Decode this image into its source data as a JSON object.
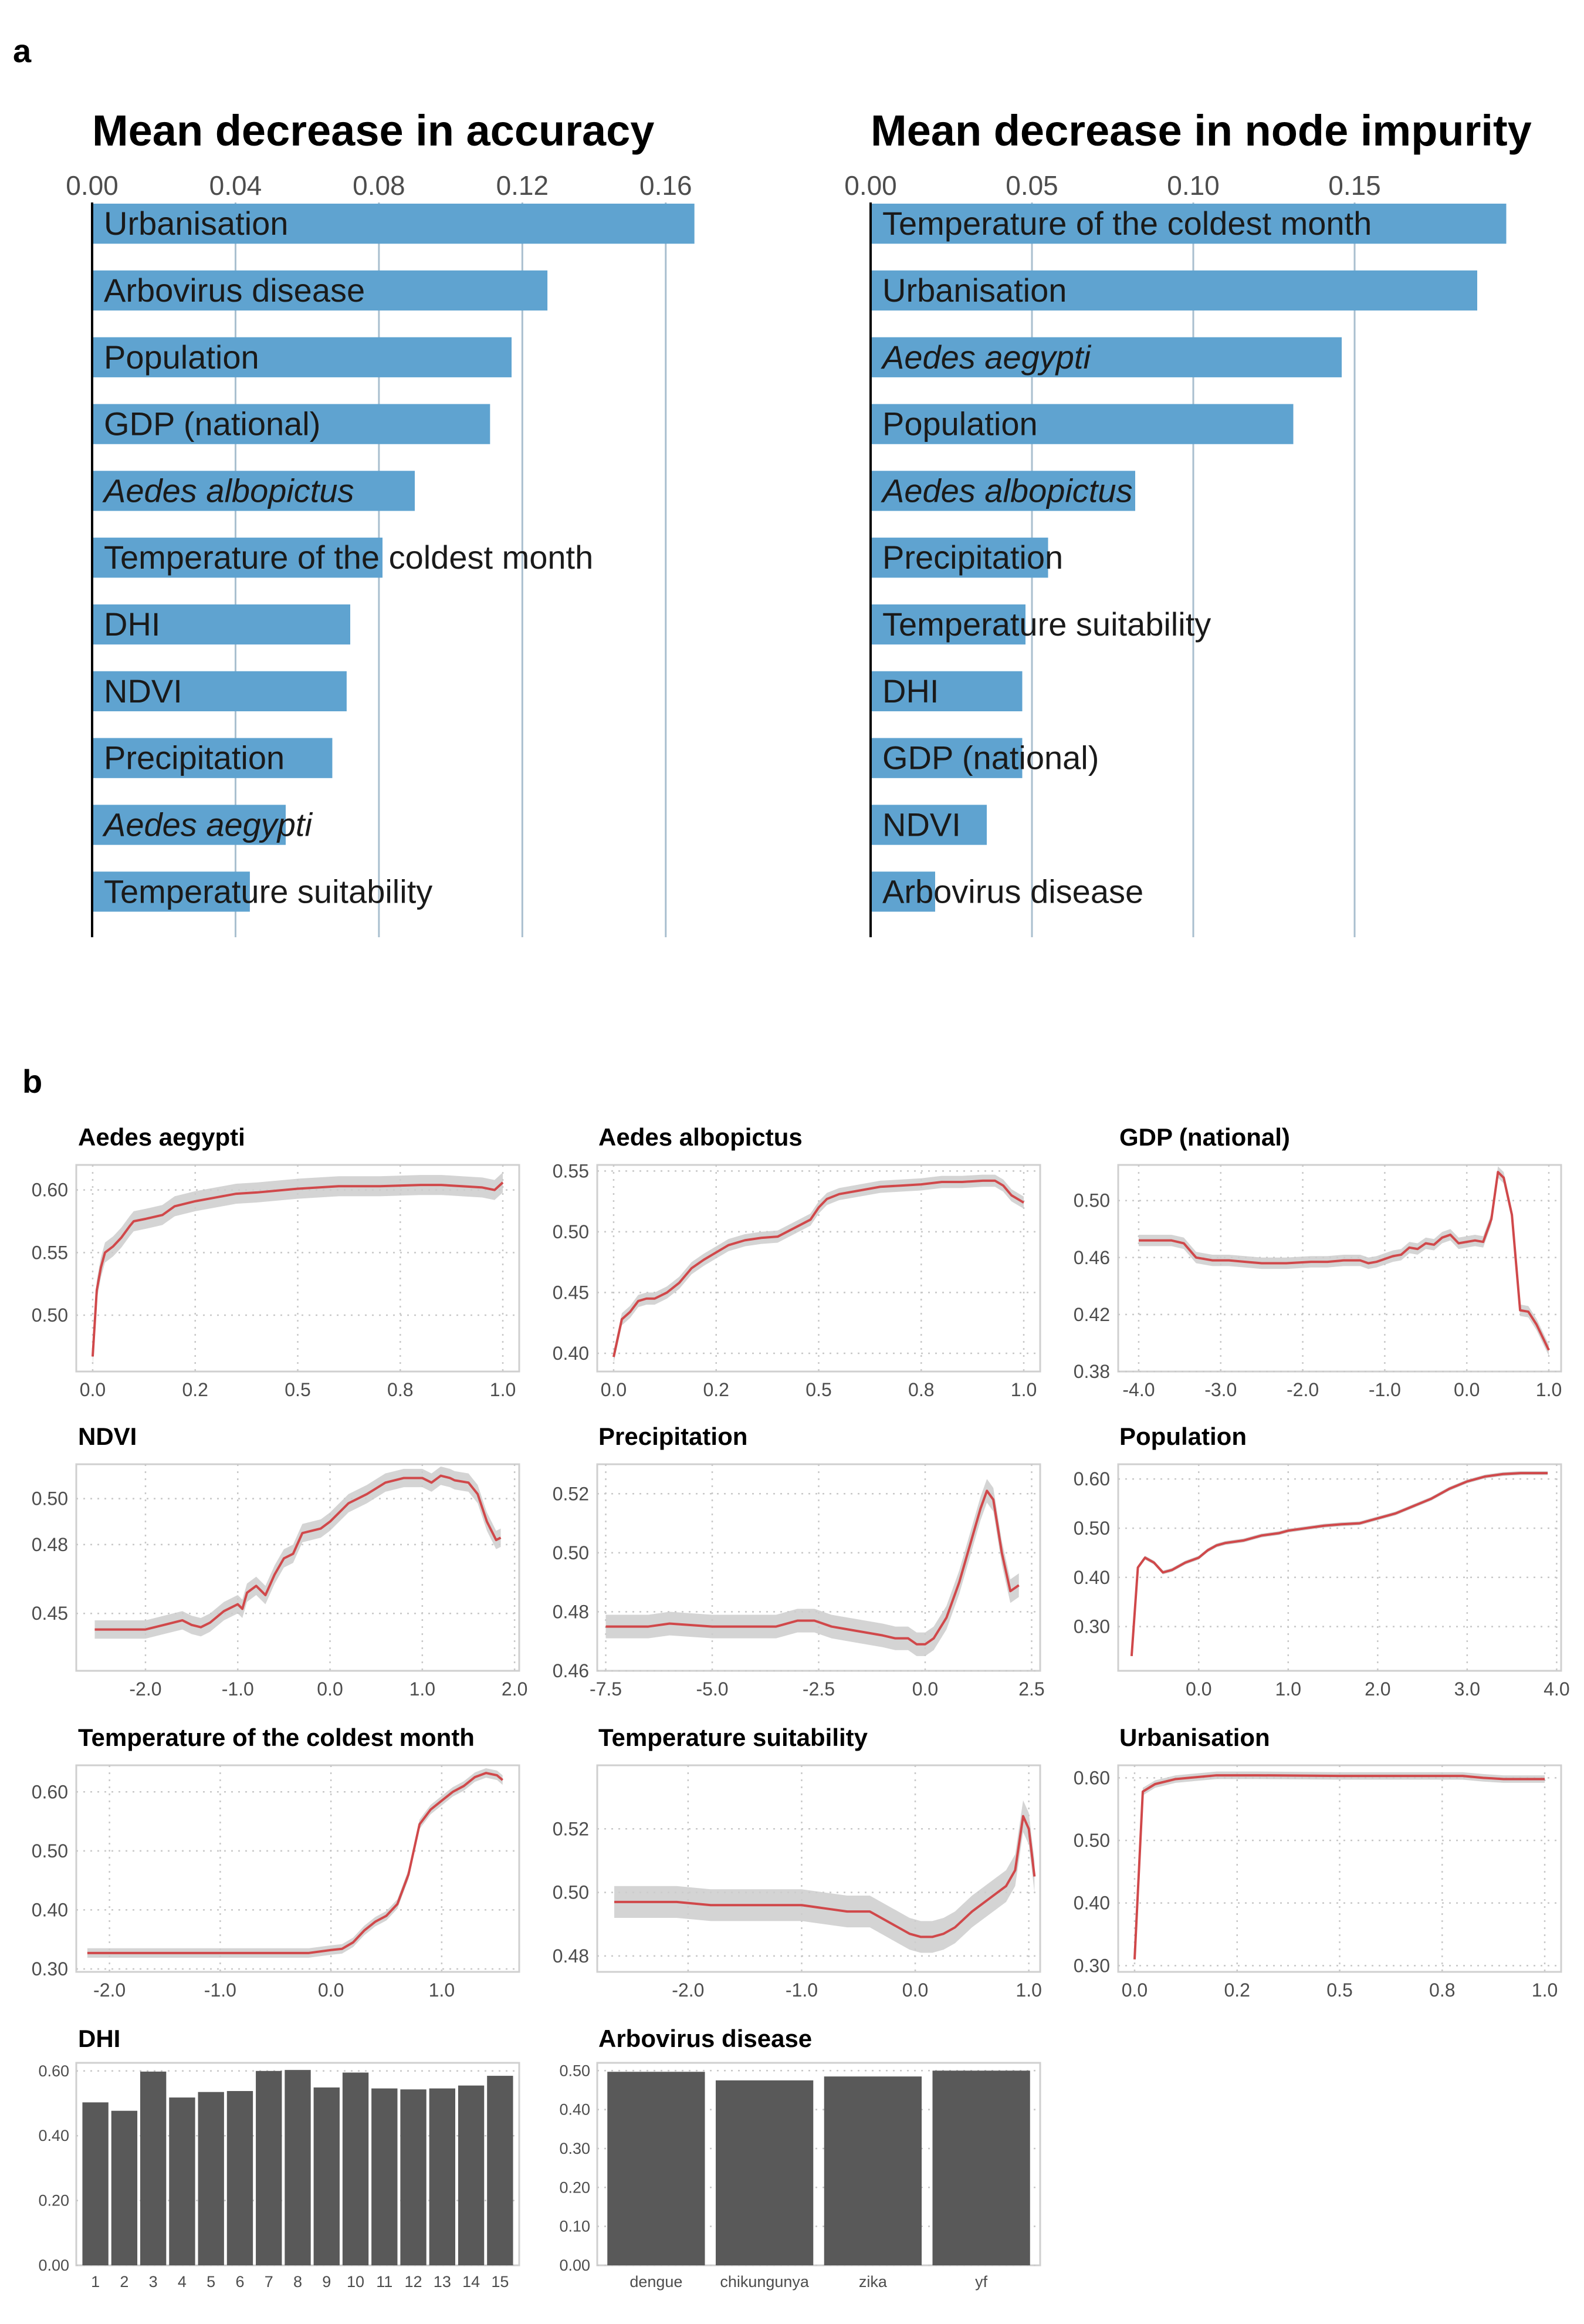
{
  "panels": {
    "a": "a",
    "b": "b"
  },
  "chart_data": [
    {
      "type": "bar",
      "title": "Mean decrease in accuracy",
      "orientation": "horizontal",
      "xlim": [
        0,
        0.18
      ],
      "xticks": [
        0,
        0.04,
        0.08,
        0.12,
        0.16
      ],
      "xtick_labels": [
        "0.00",
        "0.04",
        "0.08",
        "0.12",
        "0.16"
      ],
      "categories": [
        "Urbanisation",
        "Arbovirus disease",
        "Population",
        "GDP (national)",
        "Aedes albopictus",
        "Temperature of the coldest month",
        "DHI",
        "NDVI",
        "Precipitation",
        "Aedes aegypti",
        "Temperature suitability"
      ],
      "italic": [
        false,
        false,
        false,
        false,
        true,
        false,
        false,
        false,
        false,
        true,
        false
      ],
      "values": [
        0.168,
        0.127,
        0.117,
        0.111,
        0.09,
        0.081,
        0.072,
        0.071,
        0.067,
        0.054,
        0.044
      ],
      "bar_color": "#5fa3d0"
    },
    {
      "type": "bar",
      "title": "Mean decrease in node impurity",
      "orientation": "horizontal",
      "xlim": [
        0,
        0.2
      ],
      "xticks": [
        0,
        0.05,
        0.1,
        0.15
      ],
      "xtick_labels": [
        "0.00",
        "0.05",
        "0.10",
        "0.15"
      ],
      "categories": [
        "Temperature of the coldest month",
        "Urbanisation",
        "Aedes aegypti",
        "Population",
        "Aedes albopictus",
        "Precipitation",
        "Temperature suitability",
        "DHI",
        "GDP (national)",
        "NDVI",
        "Arbovirus disease"
      ],
      "italic": [
        false,
        false,
        true,
        false,
        true,
        false,
        false,
        false,
        false,
        false,
        false
      ],
      "values": [
        0.197,
        0.188,
        0.146,
        0.131,
        0.082,
        0.055,
        0.048,
        0.047,
        0.047,
        0.036,
        0.02
      ],
      "bar_color": "#5fa3d0"
    },
    {
      "type": "line",
      "title": "Aedes aegypti",
      "xlim": [
        -0.04,
        1.04
      ],
      "ylim": [
        0.455,
        0.62
      ],
      "xticks": [
        0,
        0.25,
        0.5,
        0.75,
        1.0
      ],
      "xtick_labels": [
        "0.0",
        "0.2",
        "0.5",
        "0.8",
        "1.0"
      ],
      "yticks": [
        0.5,
        0.55,
        0.6
      ],
      "ytick_labels": [
        "0.50",
        "0.55",
        "0.60"
      ],
      "x": [
        0,
        0.01,
        0.02,
        0.03,
        0.05,
        0.07,
        0.09,
        0.1,
        0.13,
        0.17,
        0.2,
        0.25,
        0.3,
        0.35,
        0.4,
        0.5,
        0.6,
        0.7,
        0.8,
        0.85,
        0.9,
        0.95,
        0.98,
        1.0
      ],
      "y": [
        0.467,
        0.52,
        0.538,
        0.55,
        0.555,
        0.562,
        0.571,
        0.575,
        0.577,
        0.58,
        0.587,
        0.591,
        0.594,
        0.597,
        0.598,
        0.601,
        0.603,
        0.603,
        0.604,
        0.604,
        0.603,
        0.602,
        0.6,
        0.606
      ],
      "band": 0.008,
      "line_color": "#d0484a",
      "band_color": "#cccccc"
    },
    {
      "type": "line",
      "title": "Aedes albopictus",
      "xlim": [
        -0.04,
        1.04
      ],
      "ylim": [
        0.385,
        0.555
      ],
      "xticks": [
        0,
        0.25,
        0.5,
        0.75,
        1.0
      ],
      "xtick_labels": [
        "0.0",
        "0.2",
        "0.5",
        "0.8",
        "1.0"
      ],
      "yticks": [
        0.4,
        0.45,
        0.5,
        0.55
      ],
      "ytick_labels": [
        "0.40",
        "0.45",
        "0.50",
        "0.55"
      ],
      "x": [
        0,
        0.02,
        0.04,
        0.06,
        0.08,
        0.1,
        0.13,
        0.16,
        0.19,
        0.22,
        0.25,
        0.28,
        0.32,
        0.36,
        0.4,
        0.44,
        0.48,
        0.5,
        0.52,
        0.55,
        0.6,
        0.65,
        0.7,
        0.75,
        0.8,
        0.85,
        0.9,
        0.93,
        0.95,
        0.97,
        1.0
      ],
      "y": [
        0.397,
        0.428,
        0.434,
        0.443,
        0.445,
        0.445,
        0.45,
        0.458,
        0.47,
        0.477,
        0.483,
        0.489,
        0.493,
        0.495,
        0.496,
        0.503,
        0.51,
        0.52,
        0.527,
        0.531,
        0.534,
        0.537,
        0.538,
        0.539,
        0.541,
        0.541,
        0.542,
        0.542,
        0.538,
        0.53,
        0.524
      ],
      "band": 0.005,
      "line_color": "#d0484a",
      "band_color": "#cccccc"
    },
    {
      "type": "line",
      "title": "GDP (national)",
      "xlim": [
        -4.25,
        1.15
      ],
      "ylim": [
        0.38,
        0.525
      ],
      "xticks": [
        -4,
        -3,
        -2,
        -1,
        0,
        1
      ],
      "xtick_labels": [
        "-4.0",
        "-3.0",
        "-2.0",
        "-1.0",
        "0.0",
        "1.0"
      ],
      "yticks": [
        0.38,
        0.42,
        0.46,
        0.5
      ],
      "ytick_labels": [
        "0.38",
        "0.42",
        "0.46",
        "0.50"
      ],
      "x": [
        -4.0,
        -3.8,
        -3.6,
        -3.45,
        -3.3,
        -3.1,
        -2.9,
        -2.7,
        -2.5,
        -2.2,
        -1.9,
        -1.7,
        -1.5,
        -1.3,
        -1.2,
        -1.1,
        -0.9,
        -0.8,
        -0.7,
        -0.6,
        -0.5,
        -0.4,
        -0.3,
        -0.2,
        -0.1,
        0.1,
        0.2,
        0.3,
        0.38,
        0.45,
        0.55,
        0.65,
        0.75,
        0.85,
        1.0
      ],
      "y": [
        0.472,
        0.472,
        0.472,
        0.47,
        0.46,
        0.458,
        0.458,
        0.457,
        0.456,
        0.456,
        0.457,
        0.457,
        0.458,
        0.458,
        0.456,
        0.457,
        0.461,
        0.462,
        0.467,
        0.466,
        0.47,
        0.469,
        0.474,
        0.476,
        0.47,
        0.472,
        0.471,
        0.487,
        0.52,
        0.516,
        0.49,
        0.423,
        0.422,
        0.413,
        0.395
      ],
      "band": 0.004,
      "line_color": "#d0484a",
      "band_color": "#cccccc"
    },
    {
      "type": "line",
      "title": "NDVI",
      "xlim": [
        -2.75,
        2.05
      ],
      "ylim": [
        0.425,
        0.515
      ],
      "xticks": [
        -2,
        -1,
        0,
        1,
        2
      ],
      "xtick_labels": [
        "-2.0",
        "-1.0",
        "0.0",
        "1.0",
        "2.0"
      ],
      "yticks": [
        0.45,
        0.48,
        0.5
      ],
      "ytick_labels": [
        "0.45",
        "0.48",
        "0.50"
      ],
      "x": [
        -2.55,
        -2.0,
        -1.8,
        -1.6,
        -1.5,
        -1.4,
        -1.3,
        -1.15,
        -1.0,
        -0.95,
        -0.9,
        -0.8,
        -0.7,
        -0.6,
        -0.5,
        -0.4,
        -0.3,
        -0.2,
        -0.1,
        0.0,
        0.2,
        0.4,
        0.6,
        0.8,
        1.0,
        1.1,
        1.2,
        1.3,
        1.35,
        1.5,
        1.6,
        1.7,
        1.8,
        1.85
      ],
      "y": [
        0.443,
        0.443,
        0.445,
        0.447,
        0.445,
        0.444,
        0.446,
        0.451,
        0.454,
        0.452,
        0.459,
        0.462,
        0.458,
        0.467,
        0.474,
        0.476,
        0.485,
        0.486,
        0.487,
        0.49,
        0.498,
        0.502,
        0.507,
        0.509,
        0.509,
        0.507,
        0.51,
        0.509,
        0.508,
        0.507,
        0.502,
        0.49,
        0.482,
        0.483
      ],
      "band": 0.004,
      "line_color": "#d0484a",
      "band_color": "#cccccc"
    },
    {
      "type": "line",
      "title": "Precipitation",
      "xlim": [
        -7.7,
        2.7
      ],
      "ylim": [
        0.46,
        0.53
      ],
      "xticks": [
        -7.5,
        -5,
        -2.5,
        0,
        2.5
      ],
      "xtick_labels": [
        "-7.5",
        "-5.0",
        "-2.5",
        "0.0",
        "2.5"
      ],
      "yticks": [
        0.46,
        0.48,
        0.5,
        0.52
      ],
      "ytick_labels": [
        "0.46",
        "0.48",
        "0.50",
        "0.52"
      ],
      "x": [
        -7.5,
        -6.5,
        -6.0,
        -5.0,
        -4.0,
        -3.5,
        -3.0,
        -2.6,
        -2.2,
        -1.8,
        -1.4,
        -1.0,
        -0.7,
        -0.4,
        -0.2,
        0.0,
        0.2,
        0.5,
        0.8,
        1.1,
        1.3,
        1.45,
        1.6,
        1.8,
        2.0,
        2.2
      ],
      "y": [
        0.475,
        0.475,
        0.476,
        0.475,
        0.475,
        0.475,
        0.477,
        0.477,
        0.475,
        0.474,
        0.473,
        0.472,
        0.471,
        0.471,
        0.469,
        0.469,
        0.471,
        0.478,
        0.49,
        0.505,
        0.515,
        0.521,
        0.518,
        0.5,
        0.487,
        0.489
      ],
      "band": 0.004,
      "line_color": "#d0484a",
      "band_color": "#cccccc"
    },
    {
      "type": "line",
      "title": "Population",
      "xlim": [
        -0.9,
        4.05
      ],
      "ylim": [
        0.21,
        0.63
      ],
      "xticks": [
        0,
        1,
        2,
        3,
        4
      ],
      "xtick_labels": [
        "0.0",
        "1.0",
        "2.0",
        "3.0",
        "4.0"
      ],
      "yticks": [
        0.3,
        0.4,
        0.5,
        0.6
      ],
      "ytick_labels": [
        "0.30",
        "0.40",
        "0.50",
        "0.60"
      ],
      "x": [
        -0.75,
        -0.68,
        -0.6,
        -0.5,
        -0.4,
        -0.3,
        -0.15,
        0.0,
        0.1,
        0.2,
        0.3,
        0.5,
        0.7,
        0.9,
        1.0,
        1.2,
        1.4,
        1.6,
        1.8,
        1.9,
        2.0,
        2.2,
        2.4,
        2.6,
        2.8,
        3.0,
        3.2,
        3.4,
        3.6,
        3.8,
        3.9
      ],
      "y": [
        0.24,
        0.42,
        0.44,
        0.43,
        0.41,
        0.415,
        0.43,
        0.44,
        0.455,
        0.465,
        0.47,
        0.475,
        0.485,
        0.49,
        0.495,
        0.5,
        0.505,
        0.508,
        0.51,
        0.515,
        0.52,
        0.53,
        0.545,
        0.56,
        0.58,
        0.595,
        0.605,
        0.61,
        0.612,
        0.612,
        0.612
      ],
      "band": 0.004,
      "line_color": "#d0484a",
      "band_color": "#cccccc"
    },
    {
      "type": "line",
      "title": "Temperature of the coldest month",
      "xlim": [
        -2.3,
        1.7
      ],
      "ylim": [
        0.295,
        0.645
      ],
      "xticks": [
        -2,
        -1,
        0,
        1
      ],
      "xtick_labels": [
        "-2.0",
        "-1.0",
        "0.0",
        "1.0"
      ],
      "yticks": [
        0.3,
        0.4,
        0.5,
        0.6
      ],
      "ytick_labels": [
        "0.30",
        "0.40",
        "0.50",
        "0.60"
      ],
      "x": [
        -2.2,
        -1.5,
        -1.0,
        -0.5,
        -0.2,
        0.0,
        0.1,
        0.2,
        0.3,
        0.4,
        0.5,
        0.6,
        0.7,
        0.8,
        0.9,
        1.0,
        1.1,
        1.2,
        1.3,
        1.4,
        1.5,
        1.55
      ],
      "y": [
        0.327,
        0.327,
        0.327,
        0.327,
        0.327,
        0.332,
        0.334,
        0.345,
        0.365,
        0.38,
        0.39,
        0.41,
        0.46,
        0.545,
        0.57,
        0.585,
        0.6,
        0.61,
        0.625,
        0.632,
        0.628,
        0.62
      ],
      "band": 0.008,
      "line_color": "#d0484a",
      "band_color": "#cccccc"
    },
    {
      "type": "line",
      "title": "Temperature suitability",
      "xlim": [
        -2.8,
        1.1
      ],
      "ylim": [
        0.475,
        0.54
      ],
      "xticks": [
        -2,
        -1,
        0,
        1
      ],
      "xtick_labels": [
        "-2.0",
        "-1.0",
        "0.0",
        "1.0"
      ],
      "yticks": [
        0.48,
        0.5,
        0.52
      ],
      "ytick_labels": [
        "0.48",
        "0.50",
        "0.52"
      ],
      "x": [
        -2.65,
        -2.4,
        -2.1,
        -1.8,
        -1.5,
        -1.2,
        -1.0,
        -0.8,
        -0.6,
        -0.4,
        -0.2,
        -0.05,
        0.05,
        0.15,
        0.25,
        0.35,
        0.5,
        0.65,
        0.8,
        0.88,
        0.95,
        1.0,
        1.05
      ],
      "y": [
        0.497,
        0.497,
        0.497,
        0.496,
        0.496,
        0.496,
        0.496,
        0.495,
        0.494,
        0.494,
        0.49,
        0.487,
        0.486,
        0.486,
        0.487,
        0.489,
        0.494,
        0.498,
        0.502,
        0.507,
        0.524,
        0.52,
        0.505
      ],
      "band": 0.005,
      "line_color": "#d0484a",
      "band_color": "#cccccc"
    },
    {
      "type": "line",
      "title": "Urbanisation",
      "xlim": [
        -0.04,
        1.04
      ],
      "ylim": [
        0.29,
        0.62
      ],
      "xticks": [
        0,
        0.25,
        0.5,
        0.75,
        1.0
      ],
      "xtick_labels": [
        "0.0",
        "0.2",
        "0.5",
        "0.8",
        "1.0"
      ],
      "yticks": [
        0.3,
        0.4,
        0.5,
        0.6
      ],
      "ytick_labels": [
        "0.30",
        "0.40",
        "0.50",
        "0.60"
      ],
      "x": [
        0,
        0.02,
        0.05,
        0.1,
        0.2,
        0.3,
        0.5,
        0.7,
        0.8,
        0.85,
        0.9,
        1.0
      ],
      "y": [
        0.31,
        0.578,
        0.59,
        0.598,
        0.604,
        0.604,
        0.603,
        0.603,
        0.603,
        0.6,
        0.598,
        0.598
      ],
      "band": 0.006,
      "line_color": "#d0484a",
      "band_color": "#cccccc"
    },
    {
      "type": "bar",
      "title": "DHI",
      "categories": [
        "1",
        "2",
        "3",
        "4",
        "5",
        "6",
        "7",
        "8",
        "9",
        "10",
        "11",
        "12",
        "13",
        "14",
        "15"
      ],
      "values": [
        0.503,
        0.477,
        0.598,
        0.518,
        0.535,
        0.538,
        0.6,
        0.603,
        0.549,
        0.595,
        0.546,
        0.543,
        0.546,
        0.555,
        0.585
      ],
      "ylim": [
        0,
        0.625
      ],
      "yticks": [
        0,
        0.2,
        0.4,
        0.6
      ],
      "ytick_labels": [
        "0.00",
        "0.20",
        "0.40",
        "0.60"
      ],
      "bar_color": "#595959"
    },
    {
      "type": "bar",
      "title": "Arbovirus disease",
      "categories": [
        "dengue",
        "chikungunya",
        "zika",
        "yf"
      ],
      "values": [
        0.497,
        0.475,
        0.485,
        0.5
      ],
      "ylim": [
        0,
        0.52
      ],
      "yticks": [
        0,
        0.1,
        0.2,
        0.3,
        0.4,
        0.5
      ],
      "ytick_labels": [
        "0.00",
        "0.10",
        "0.20",
        "0.30",
        "0.40",
        "0.50"
      ],
      "bar_color": "#595959"
    }
  ]
}
